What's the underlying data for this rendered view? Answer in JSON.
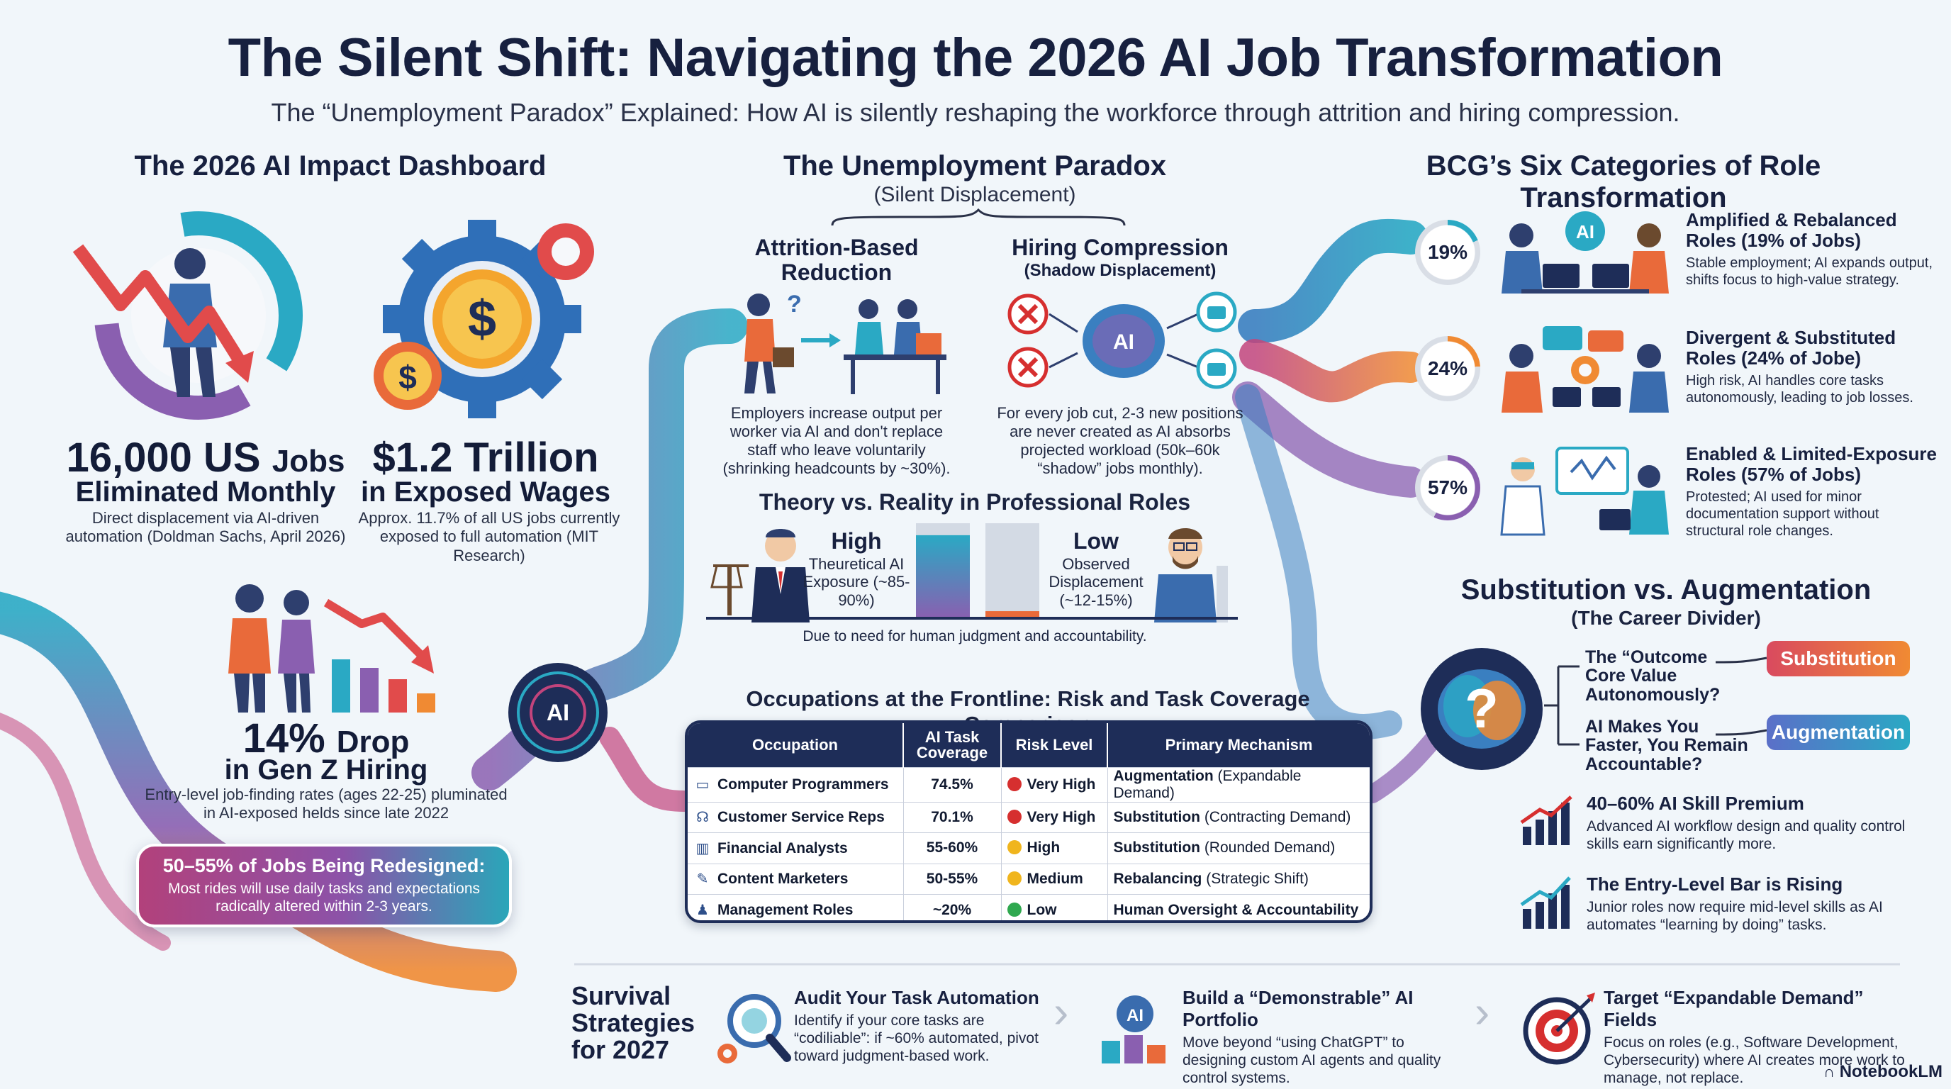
{
  "header": {
    "title": "The Silent Shift: Navigating the 2026 AI Job Transformation",
    "subtitle": "The “Unemployment Paradox” Explained: How AI is silently reshaping the workforce through attrition and hiring compression."
  },
  "dashboard": {
    "title": "The 2026 AI Impact Dashboard",
    "jobs_big": "16,000 US",
    "jobs_unit": "Jobs",
    "jobs_label": "Eliminated Monthly",
    "jobs_note": "Direct displacement via AI-driven automation (Doldman Sachs, April 2026)",
    "wages_big": "$1.2 Trillion",
    "wages_label": "in Exposed Wages",
    "wages_note": "Approx. 11.7% of all US jobs currently exposed to full automation (MIT Research)",
    "genz_big": "14%",
    "genz_unit": "Drop",
    "genz_label": "in Gen Z Hiring",
    "genz_note": "Entry-level job-finding rates (ages 22-25) pluminated in AI-exposed helds since late 2022",
    "redesign_title": "50–55% of Jobs Being Redesigned:",
    "redesign_desc": "Most rides will use daily tasks and expectations radically altered within 2-3 years."
  },
  "paradox": {
    "title": "The Unemployment Paradox",
    "subtitle": "(Silent Displacement)",
    "attrition_title": "Attrition-Based Reduction",
    "attrition_note": "Employers increase output per worker via AI and don't replace staff who leave voluntarily (shrinking headcounts by ~30%).",
    "hiring_title": "Hiring Compression",
    "hiring_sub": "(Shadow Displacement)",
    "hiring_note": "For every job cut, 2-3 new positions are never created as AI absorbs projected workload (50k–60k “shadow” jobs monthly).",
    "ai_label": "AI"
  },
  "theory": {
    "title": "Theory vs. Reality in Professional Roles",
    "high_label": "High",
    "high_desc": "Theuretical AI Exposure (~85-90%)",
    "low_label": "Low",
    "low_desc": "Observed Displacement (~12-15%)",
    "note": "Due to need for human judgment and accountability.",
    "high_value_pct": 87.5,
    "low_value_pct": 13.5
  },
  "occupations": {
    "title": "Occupations at the Frontline: Risk and Task Coverage Comparison",
    "headers": [
      "Occupation",
      "AI Task Coverage",
      "Risk Level",
      "Primary Mechanism"
    ],
    "rows": [
      {
        "occupation": "Computer Programmers",
        "coverage": "74.5%",
        "risk": "Very High",
        "risk_color": "#d62f2f",
        "mech_bold": "Augmentation",
        "mech_rest": " (Expandable Demand)",
        "icon": "laptop-icon",
        "glyph": "▭"
      },
      {
        "occupation": "Customer Service Reps",
        "coverage": "70.1%",
        "risk": "Very High",
        "risk_color": "#d62f2f",
        "mech_bold": "Substitution",
        "mech_rest": " (Contracting Demand)",
        "icon": "headset-icon",
        "glyph": "☊"
      },
      {
        "occupation": "Financial Analysts",
        "coverage": "55-60%",
        "risk": "High",
        "risk_color": "#f0b51d",
        "mech_bold": "Substitution",
        "mech_rest": " (Rounded Demand)",
        "icon": "bar-chart-icon",
        "glyph": "▥"
      },
      {
        "occupation": "Content Marketers",
        "coverage": "50-55%",
        "risk": "Medium",
        "risk_color": "#f0b51d",
        "mech_bold": "Rebalancing",
        "mech_rest": " (Strategic Shift)",
        "icon": "pen-icon",
        "glyph": "✎"
      },
      {
        "occupation": "Management Roles",
        "coverage": "~20%",
        "risk": "Low",
        "risk_color": "#2fa84f",
        "mech_bold": "Human Oversight & Accountability",
        "mech_rest": "",
        "icon": "manager-icon",
        "glyph": "♟"
      }
    ]
  },
  "bcg": {
    "title": "BCG’s Six Categories of Role Transformation",
    "categories": [
      {
        "pct": "19%",
        "value": 19,
        "color": "#2aa9c4",
        "title": "Amplified & Rebalanced Roles (19% of Jobs)",
        "desc": "Stable employment; AI expands output, shifts focus to high-value strategy."
      },
      {
        "pct": "24%",
        "value": 24,
        "color": "#f08a33",
        "title": "Divergent & Substituted Roles (24% of Jobe)",
        "desc": "High risk, AI handles core tasks autonomously, leading to job losses."
      },
      {
        "pct": "57%",
        "value": 57,
        "color": "#8a5fb0",
        "title": "Enabled & Limited-Exposure Roles (57% of Jobs)",
        "desc": "Protested; AI used for minor documentation support without structural role changes."
      }
    ]
  },
  "substitution": {
    "title": "Substitution vs. Augmentation",
    "subtitle": "(The Career Divider)",
    "q1": "The “Outcome Core Value Autonomously?",
    "q2": "AI Makes You Faster, You Remain Accountable?",
    "pill_sub": "Substitution",
    "pill_aug": "Augmentation",
    "premium_title": "40–60% AI Skill Premium",
    "premium_desc": "Advanced AI workflow design and quality control skills earn significantly more.",
    "entry_title": "The Entry-Level Bar is Rising",
    "entry_desc": "Junior roles now require mid-level skills as AI automates “learning by doing” tasks."
  },
  "survival": {
    "title": "Survival Strategies for 2027",
    "strategies": [
      {
        "title": "Audit Your Task Automation",
        "desc": "Identify if your core tasks are “codiliable”: if ~60% automated, pivot toward judgment-based work."
      },
      {
        "title": "Build a “Demonstrable” AI Portfolio",
        "desc": "Move beyond “using ChatGPT” to designing custom AI agents and quality control systems."
      },
      {
        "title": "Target “Expandable Demand” Fields",
        "desc": "Focus on roles (e.g., Software Development, Cybersecurity) where AI creates more work to manage, not replace."
      }
    ]
  },
  "brand": "NotebookLM",
  "colors": {
    "navy": "#1e2d58",
    "teal": "#2aa9c4",
    "orange": "#f08a33",
    "purple": "#8a5fb0",
    "magenta": "#c2447c",
    "red": "#d62f2f"
  }
}
